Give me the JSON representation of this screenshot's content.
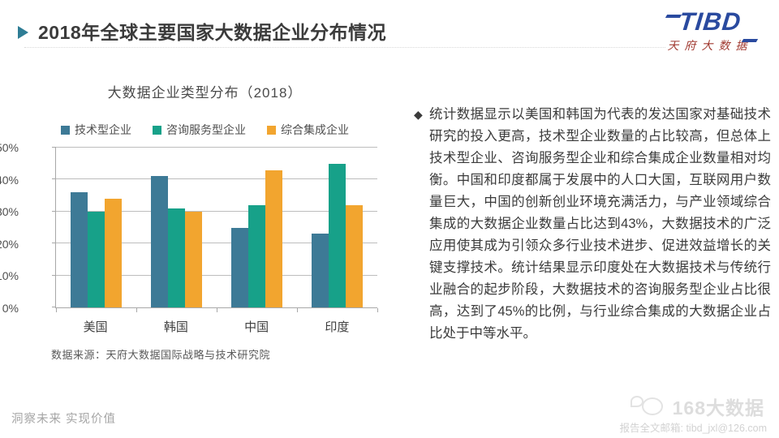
{
  "header": {
    "title": "2018年全球主要国家大数据企业分布情况",
    "logo_text": "TIBD",
    "logo_subtext": "天府大数据"
  },
  "chart_data": {
    "type": "bar",
    "title": "大数据企业类型分布（2018）",
    "categories": [
      "美国",
      "韩国",
      "中国",
      "印度"
    ],
    "series": [
      {
        "name": "技术型企业",
        "color": "#3D7A96",
        "values": [
          36,
          41,
          25,
          23
        ]
      },
      {
        "name": "咨询服务型企业",
        "color": "#17A189",
        "values": [
          30,
          31,
          32,
          45
        ]
      },
      {
        "name": "综合集成企业",
        "color": "#F2A52F",
        "values": [
          34,
          30,
          43,
          32
        ]
      }
    ],
    "ylim": [
      0,
      50
    ],
    "ytick_step": 10,
    "ytick_suffix": "%",
    "grid": true,
    "legend_position": "top",
    "source": "数据来源：天府大数据国际战略与技术研究院"
  },
  "analysis": {
    "bullet": "◆",
    "text": "统计数据显示以美国和韩国为代表的发达国家对基础技术研究的投入更高，技术型企业数量的占比较高，但总体上技术型企业、咨询服务型企业和综合集成企业数量相对均衡。中国和印度都属于发展中的人口大国，互联网用户数量巨大，中国的创新创业环境充满活力，与产业领域综合集成的大数据企业数量占比达到43%，大数据技术的广泛应用使其成为引领众多行业技术进步、促进效益增长的关键支撑技术。统计结果显示印度处在大数据技术与传统行业融合的起步阶段，大数据技术的咨询服务型企业占比很高，达到了45%的比例，与行业综合集成的大数据企业占比处于中等水平。"
  },
  "footer": {
    "slogan": "洞察未来 实现价值",
    "watermark_text": "168大数据",
    "email_line": "报告全文邮箱: tibd_jxl@126.com"
  }
}
